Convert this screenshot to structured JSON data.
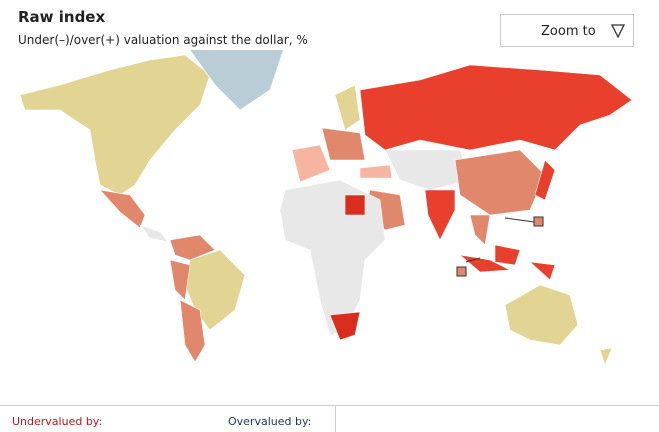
{
  "header": {
    "title": "Raw index",
    "subtitle": "Under(–)/over(+) valuation against the dollar, %"
  },
  "controls": {
    "zoom": "Zoom to"
  },
  "footer": {
    "undervalued": "Undervalued by:",
    "overvalued": "Overvalued by:"
  }
}
